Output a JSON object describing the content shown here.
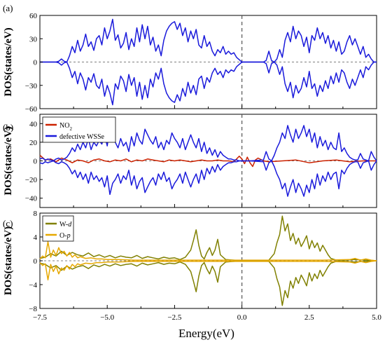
{
  "figure": {
    "x_axis_title": "Energy(eV)",
    "x_ticks": [
      "−7.5",
      "−5.0",
      "−2.5",
      "0.0",
      "2.5",
      "5.0"
    ]
  },
  "chart_data": [
    {
      "type": "line",
      "panel": "(a)",
      "ylabel": "DOS(states/eV)",
      "xlim": [
        -7.5,
        5.0
      ],
      "ylim": [
        -60,
        60
      ],
      "yticks": [
        -60,
        -30,
        0,
        30,
        60
      ],
      "grid": false,
      "fermi_level": 0.0,
      "series": [
        {
          "color": "#1a1adb",
          "symmetric": true,
          "x": [
            -7.5,
            -6.9,
            -6.8,
            -6.7,
            -6.6,
            -6.5,
            -6.4,
            -6.3,
            -6.2,
            -6.1,
            -6.0,
            -5.9,
            -5.8,
            -5.7,
            -5.6,
            -5.5,
            -5.4,
            -5.3,
            -5.2,
            -5.1,
            -5.0,
            -4.9,
            -4.8,
            -4.7,
            -4.6,
            -4.5,
            -4.4,
            -4.3,
            -4.2,
            -4.1,
            -4.0,
            -3.9,
            -3.8,
            -3.7,
            -3.6,
            -3.5,
            -3.4,
            -3.3,
            -3.2,
            -3.1,
            -3.0,
            -2.9,
            -2.8,
            -2.7,
            -2.6,
            -2.5,
            -2.4,
            -2.3,
            -2.2,
            -2.1,
            -2.0,
            -1.9,
            -1.8,
            -1.7,
            -1.6,
            -1.5,
            -1.4,
            -1.3,
            -1.2,
            -1.1,
            -1.0,
            -0.9,
            -0.8,
            -0.7,
            -0.6,
            -0.5,
            -0.4,
            -0.3,
            -0.2,
            -0.1,
            0.0,
            0.3,
            0.8,
            0.9,
            1.0,
            1.1,
            1.2,
            1.3,
            1.4,
            1.5,
            1.6,
            1.7,
            1.8,
            1.9,
            2.0,
            2.1,
            2.2,
            2.3,
            2.4,
            2.5,
            2.6,
            2.7,
            2.8,
            2.9,
            3.0,
            3.1,
            3.2,
            3.3,
            3.4,
            3.5,
            3.6,
            3.7,
            3.8,
            3.9,
            4.0,
            4.1,
            4.2,
            4.3,
            4.4,
            4.5,
            4.6,
            4.7,
            4.8,
            4.9,
            5.0
          ],
          "y": [
            0,
            0,
            1,
            4,
            1,
            0,
            8,
            20,
            12,
            28,
            14,
            22,
            36,
            20,
            26,
            15,
            30,
            34,
            22,
            44,
            30,
            40,
            55,
            28,
            35,
            18,
            24,
            38,
            16,
            30,
            20,
            44,
            26,
            48,
            30,
            46,
            22,
            32,
            14,
            22,
            8,
            28,
            40,
            46,
            50,
            52,
            42,
            50,
            34,
            44,
            26,
            40,
            30,
            42,
            22,
            18,
            34,
            20,
            26,
            14,
            8,
            16,
            12,
            20,
            10,
            14,
            10,
            12,
            6,
            3,
            0,
            0,
            0,
            2,
            14,
            2,
            0,
            4,
            16,
            6,
            28,
            38,
            26,
            46,
            30,
            40,
            34,
            20,
            32,
            12,
            34,
            28,
            44,
            30,
            38,
            24,
            34,
            18,
            28,
            14,
            26,
            10,
            14,
            26,
            34,
            22,
            30,
            20,
            10,
            20,
            6,
            10,
            4,
            0,
            0
          ]
        }
      ]
    },
    {
      "type": "line",
      "panel": "(b)",
      "ylabel": "DOS(states/eV)",
      "xlim": [
        -7.5,
        5.0
      ],
      "ylim": [
        -50,
        50
      ],
      "yticks": [
        -40,
        -20,
        0,
        20,
        40
      ],
      "grid": false,
      "fermi_level": 0.0,
      "series": [
        {
          "name": "NO2",
          "color": "#cc2200",
          "symmetric": false,
          "x": [
            -7.5,
            -7.3,
            -7.1,
            -6.9,
            -6.7,
            -6.5,
            -6.3,
            -6.1,
            -5.9,
            -5.7,
            -5.5,
            -5.3,
            -5.1,
            -4.9,
            -4.7,
            -4.5,
            -4.3,
            -4.1,
            -3.9,
            -3.7,
            -3.5,
            -3.3,
            -3.1,
            -2.9,
            -2.7,
            -2.5,
            -2.3,
            -2.1,
            -1.9,
            -1.7,
            -1.5,
            -1.3,
            -1.1,
            -0.9,
            -0.7,
            -0.5,
            -0.3,
            -0.1,
            0.0,
            0.1,
            0.2,
            0.3,
            0.4,
            0.5,
            0.6,
            0.8,
            1.0,
            1.5,
            2.0,
            2.5,
            3.0,
            3.5,
            4.0,
            4.5,
            5.0
          ],
          "y": [
            6,
            1,
            2,
            -1,
            3,
            1,
            -2,
            1,
            0,
            -2,
            1,
            2,
            0,
            -1,
            1,
            0,
            2,
            -1,
            1,
            0,
            2,
            1,
            0,
            -1,
            1,
            0,
            1,
            0,
            -1,
            0,
            1,
            0,
            0,
            1,
            0,
            0,
            -1,
            5,
            2,
            -3,
            4,
            -2,
            -6,
            1,
            3,
            0,
            -1,
            0,
            1,
            -2,
            0,
            1,
            -1,
            0,
            0
          ]
        },
        {
          "name": "defective WSSe",
          "color": "#1a1adb",
          "symmetric": true,
          "x": [
            -7.5,
            -7.4,
            -7.3,
            -7.2,
            -7.1,
            -7.0,
            -6.9,
            -6.8,
            -6.7,
            -6.6,
            -6.5,
            -6.4,
            -6.3,
            -6.2,
            -6.1,
            -6.0,
            -5.9,
            -5.8,
            -5.7,
            -5.6,
            -5.5,
            -5.4,
            -5.3,
            -5.2,
            -5.1,
            -5.0,
            -4.9,
            -4.8,
            -4.7,
            -4.6,
            -4.5,
            -4.4,
            -4.3,
            -4.2,
            -4.1,
            -4.0,
            -3.9,
            -3.8,
            -3.7,
            -3.6,
            -3.5,
            -3.4,
            -3.3,
            -3.2,
            -3.1,
            -3.0,
            -2.9,
            -2.8,
            -2.7,
            -2.6,
            -2.5,
            -2.4,
            -2.3,
            -2.2,
            -2.1,
            -2.0,
            -1.9,
            -1.8,
            -1.7,
            -1.6,
            -1.5,
            -1.4,
            -1.3,
            -1.2,
            -1.1,
            -1.0,
            -0.9,
            -0.8,
            -0.7,
            -0.6,
            -0.5,
            -0.4,
            -0.3,
            -0.2,
            -0.1,
            0.0,
            0.3,
            0.8,
            0.9,
            1.0,
            1.1,
            1.2,
            1.3,
            1.4,
            1.5,
            1.6,
            1.7,
            1.8,
            1.9,
            2.0,
            2.1,
            2.2,
            2.3,
            2.4,
            2.5,
            2.6,
            2.7,
            2.8,
            2.9,
            3.0,
            3.1,
            3.2,
            3.3,
            3.4,
            3.5,
            3.6,
            3.7,
            3.8,
            3.9,
            4.0,
            4.1,
            4.2,
            4.3,
            4.4,
            4.5,
            4.6,
            4.7,
            4.8,
            4.9,
            5.0
          ],
          "y": [
            2,
            3,
            1,
            2,
            1,
            0,
            2,
            3,
            1,
            2,
            4,
            8,
            14,
            10,
            18,
            12,
            20,
            14,
            24,
            12,
            20,
            16,
            22,
            18,
            28,
            16,
            36,
            24,
            20,
            14,
            24,
            16,
            20,
            10,
            26,
            16,
            30,
            22,
            18,
            34,
            28,
            22,
            18,
            26,
            14,
            20,
            12,
            22,
            18,
            30,
            24,
            20,
            14,
            24,
            12,
            20,
            28,
            20,
            14,
            24,
            10,
            20,
            8,
            14,
            6,
            12,
            4,
            10,
            6,
            4,
            2,
            2,
            1,
            1,
            0,
            0,
            0,
            1,
            10,
            2,
            0,
            6,
            14,
            20,
            30,
            24,
            38,
            28,
            20,
            34,
            24,
            30,
            38,
            26,
            34,
            20,
            30,
            14,
            26,
            16,
            22,
            12,
            20,
            14,
            12,
            30,
            10,
            14,
            8,
            4,
            2,
            1,
            1,
            8,
            2,
            1,
            0,
            10,
            4,
            0
          ]
        }
      ]
    },
    {
      "type": "line",
      "panel": "(c)",
      "ylabel": "DOS(states/eV)",
      "xlim": [
        -7.5,
        5.0
      ],
      "ylim": [
        -8,
        8
      ],
      "yticks": [
        -8,
        -4,
        0,
        4,
        8
      ],
      "grid": false,
      "fermi_level": 0.0,
      "series": [
        {
          "name_main": "W-",
          "name_italic": "d",
          "color": "#808000",
          "symmetric": true,
          "x": [
            -7.5,
            -7.3,
            -7.1,
            -6.9,
            -6.7,
            -6.5,
            -6.3,
            -6.1,
            -5.9,
            -5.7,
            -5.5,
            -5.3,
            -5.1,
            -4.9,
            -4.7,
            -4.5,
            -4.3,
            -4.1,
            -3.9,
            -3.7,
            -3.5,
            -3.3,
            -3.1,
            -2.9,
            -2.7,
            -2.5,
            -2.3,
            -2.1,
            -1.9,
            -1.8,
            -1.7,
            -1.6,
            -1.5,
            -1.4,
            -1.3,
            -1.2,
            -1.1,
            -1.0,
            -0.9,
            -0.8,
            -0.6,
            -0.3,
            0.0,
            0.5,
            1.0,
            1.2,
            1.3,
            1.4,
            1.5,
            1.6,
            1.7,
            1.8,
            1.9,
            2.0,
            2.1,
            2.2,
            2.3,
            2.4,
            2.5,
            2.6,
            2.7,
            2.8,
            2.9,
            3.0,
            3.1,
            3.2,
            3.3,
            3.5,
            3.8,
            4.2,
            4.6,
            5.0
          ],
          "y": [
            0.4,
            0.6,
            1.2,
            0.8,
            1.6,
            0.9,
            1.4,
            1.0,
            0.8,
            1.3,
            0.7,
            1.0,
            0.6,
            0.9,
            0.5,
            0.8,
            0.6,
            0.5,
            0.9,
            0.4,
            0.7,
            0.5,
            0.3,
            0.6,
            0.4,
            0.5,
            0.2,
            0.6,
            1.8,
            3.4,
            5.2,
            2.6,
            0.8,
            0.3,
            1.4,
            2.2,
            0.9,
            1.8,
            3.6,
            1.0,
            0.2,
            0.1,
            0,
            0,
            0.1,
            1.2,
            3.0,
            4.4,
            7.5,
            5.0,
            6.2,
            3.4,
            4.6,
            2.8,
            3.8,
            2.4,
            3.2,
            4.2,
            2.0,
            3.4,
            2.2,
            3.0,
            1.6,
            2.6,
            1.8,
            1.0,
            0.4,
            0.1,
            0.1,
            0.2,
            0.1,
            0
          ]
        },
        {
          "name_main": "O-",
          "name_italic": "p",
          "color": "#e6a800",
          "symmetric": true,
          "x": [
            -7.5,
            -7.4,
            -7.3,
            -7.2,
            -7.1,
            -7.0,
            -6.9,
            -6.8,
            -6.7,
            -6.6,
            -6.5,
            -6.4,
            -6.3,
            -6.2,
            -6.1,
            -6.0,
            -5.8,
            -5.6,
            -5.4,
            -5.2,
            -5.0,
            -4.6,
            -4.0,
            -3.0,
            -2.0,
            -1.0,
            0.0,
            1.0,
            2.0,
            3.0,
            4.0,
            4.2,
            4.4,
            4.6,
            4.8,
            5.0
          ],
          "y": [
            0.3,
            0.8,
            0.5,
            3.2,
            0.6,
            1.8,
            0.9,
            2.2,
            1.2,
            1.6,
            0.8,
            1.4,
            0.6,
            1.0,
            0.5,
            0.7,
            0.4,
            0.5,
            0.3,
            0.3,
            0.2,
            0.2,
            0.1,
            0.1,
            0.1,
            0.1,
            0.1,
            0.1,
            0.1,
            0.1,
            0.2,
            0.4,
            0.1,
            0.3,
            0.1,
            0
          ]
        }
      ]
    }
  ]
}
